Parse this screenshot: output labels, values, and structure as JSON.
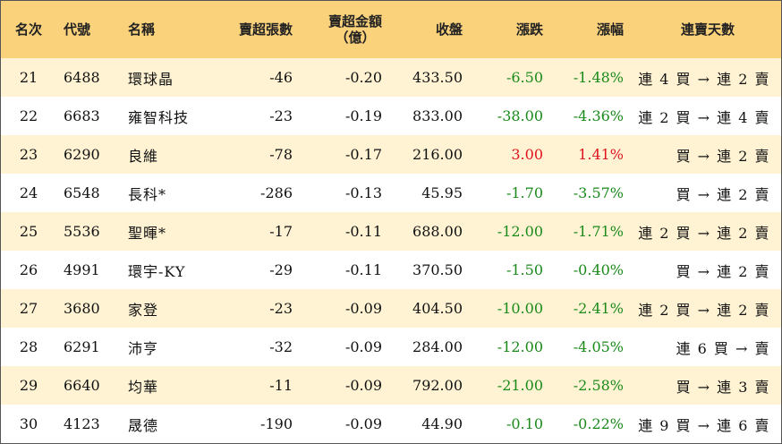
{
  "headers": {
    "rank": "名次",
    "code": "代號",
    "name": "名稱",
    "sell_lots": "賣超張數",
    "sell_amount_line1": "賣超金額",
    "sell_amount_line2": "（億）",
    "close": "收盤",
    "change": "漲跌",
    "change_pct": "漲幅",
    "streak": "連賣天數"
  },
  "rows": [
    {
      "rank": "21",
      "code": "6488",
      "name": "環球晶",
      "lots": "-46",
      "amount": "-0.20",
      "close": "433.50",
      "change": "-6.50",
      "pct": "-1.48%",
      "streak": "連 4 買 → 連 2 賣",
      "dir": "neg"
    },
    {
      "rank": "22",
      "code": "6683",
      "name": "雍智科技",
      "lots": "-23",
      "amount": "-0.19",
      "close": "833.00",
      "change": "-38.00",
      "pct": "-4.36%",
      "streak": "連 2 買 → 連 4 賣",
      "dir": "neg"
    },
    {
      "rank": "23",
      "code": "6290",
      "name": "良維",
      "lots": "-78",
      "amount": "-0.17",
      "close": "216.00",
      "change": "3.00",
      "pct": "1.41%",
      "streak": "買 → 連 2 賣",
      "dir": "pos"
    },
    {
      "rank": "24",
      "code": "6548",
      "name": "長科*",
      "lots": "-286",
      "amount": "-0.13",
      "close": "45.95",
      "change": "-1.70",
      "pct": "-3.57%",
      "streak": "買 → 連 2 賣",
      "dir": "neg"
    },
    {
      "rank": "25",
      "code": "5536",
      "name": "聖暉*",
      "lots": "-17",
      "amount": "-0.11",
      "close": "688.00",
      "change": "-12.00",
      "pct": "-1.71%",
      "streak": "連 2 買 → 連 2 賣",
      "dir": "neg"
    },
    {
      "rank": "26",
      "code": "4991",
      "name": "環宇-KY",
      "lots": "-29",
      "amount": "-0.11",
      "close": "370.50",
      "change": "-1.50",
      "pct": "-0.40%",
      "streak": "買 → 連 2 賣",
      "dir": "neg"
    },
    {
      "rank": "27",
      "code": "3680",
      "name": "家登",
      "lots": "-23",
      "amount": "-0.09",
      "close": "404.50",
      "change": "-10.00",
      "pct": "-2.41%",
      "streak": "連 2 買 → 連 2 賣",
      "dir": "neg"
    },
    {
      "rank": "28",
      "code": "6291",
      "name": "沛亨",
      "lots": "-32",
      "amount": "-0.09",
      "close": "284.00",
      "change": "-12.00",
      "pct": "-4.05%",
      "streak": "連 6 買 → 賣",
      "dir": "neg"
    },
    {
      "rank": "29",
      "code": "6640",
      "name": "均華",
      "lots": "-11",
      "amount": "-0.09",
      "close": "792.00",
      "change": "-21.00",
      "pct": "-2.58%",
      "streak": "買 → 連 3 賣",
      "dir": "neg"
    },
    {
      "rank": "30",
      "code": "4123",
      "name": "晟德",
      "lots": "-190",
      "amount": "-0.09",
      "close": "44.90",
      "change": "-0.10",
      "pct": "-0.22%",
      "streak": "連 9 買 → 連 6 賣",
      "dir": "neg"
    }
  ],
  "colors": {
    "header_bg": "#fbd27c",
    "odd_row_bg": "#fff3d3",
    "down": "#1a8a1a",
    "up": "#e0121f"
  }
}
